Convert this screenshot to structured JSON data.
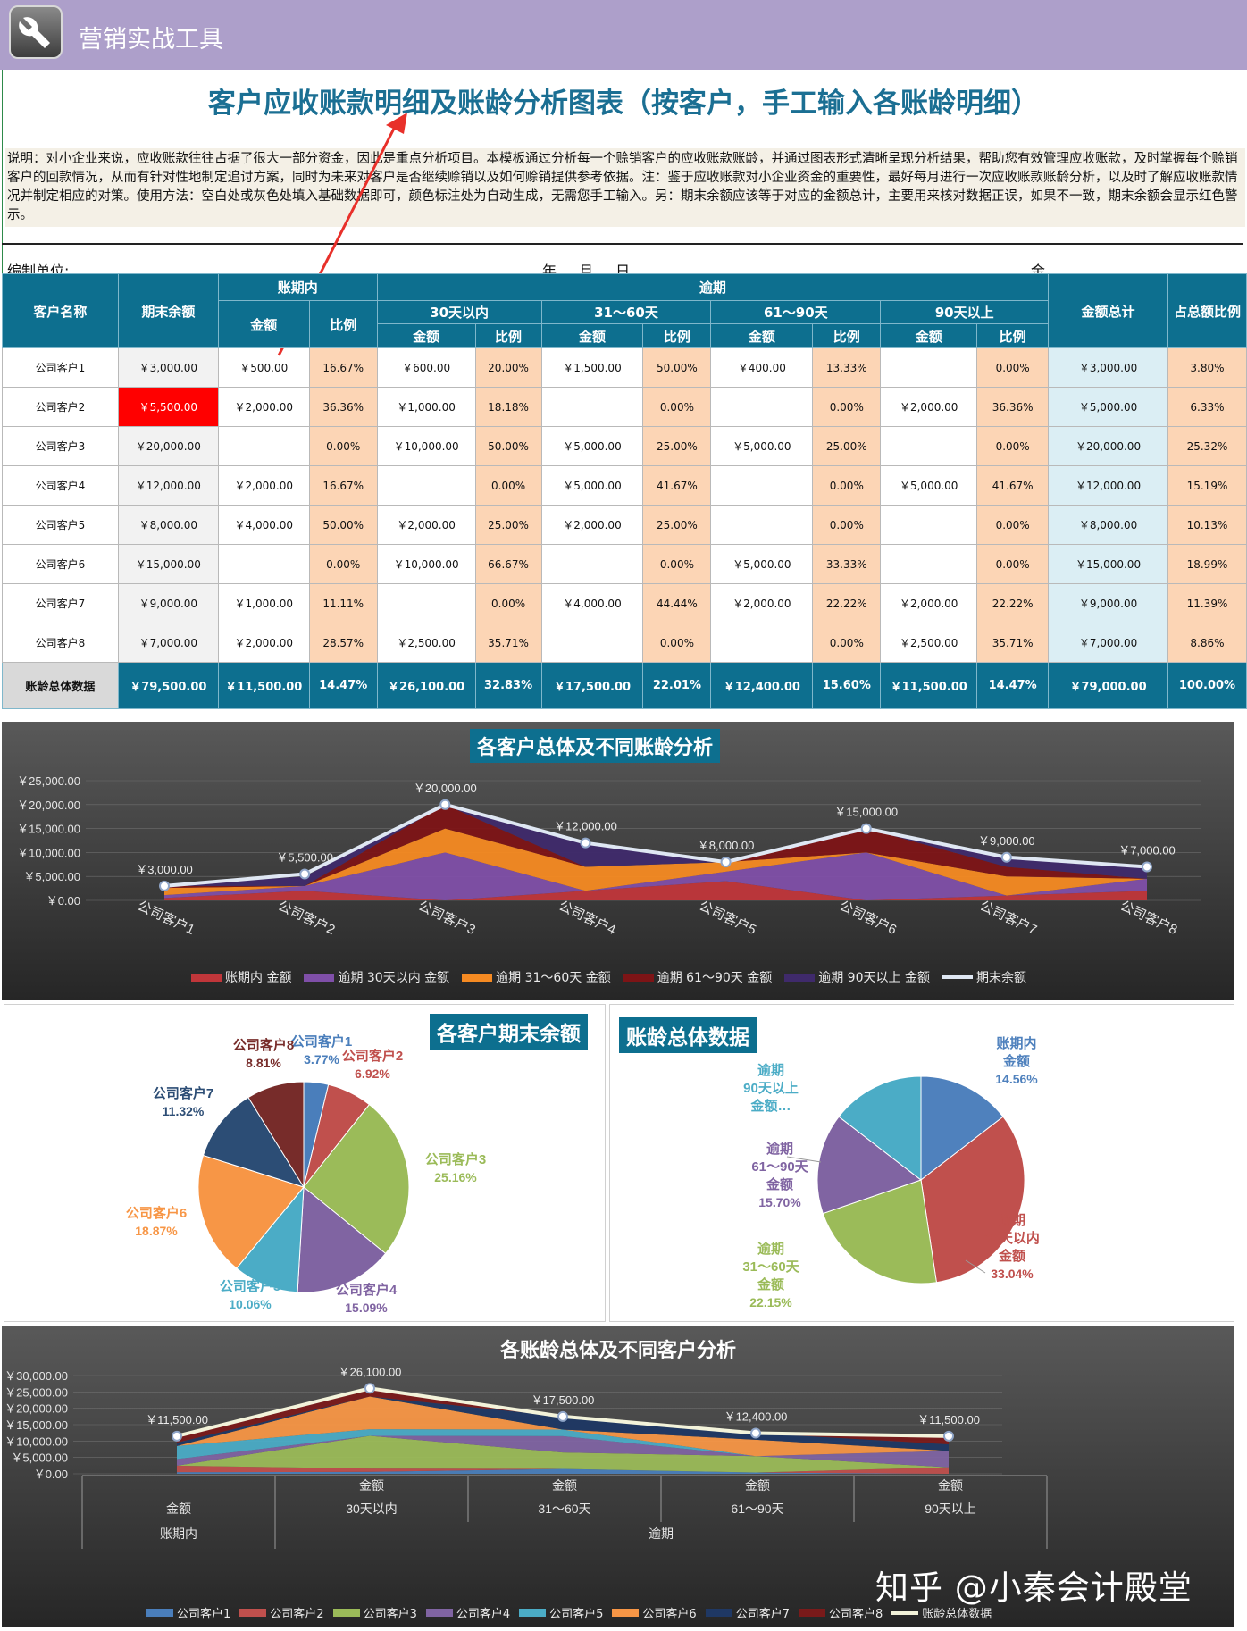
{
  "app": {
    "title": "营销实战工具"
  },
  "header": {
    "title": "客户应收账款明细及账龄分析图表（按客户，手工输入各账龄明细）",
    "description": "说明：对小企业来说，应收账款往往占据了很大一部分资金，因此是重点分析项目。本模板通过分析每一个赊销客户的应收账款账龄，并通过图表形式清晰呈现分析结果，帮助您有效管理应收账款，及时掌握每个赊销客户的回款情况，从而有针对性地制定追讨方案，同时为未来对客户是否继续赊销以及如何赊销提供参考依据。注：鉴于应收账款对小企业资金的重要性，最好每月进行一次应收账款账龄分析，以及时了解应收账款情况并制定相应的对策。使用方法：空白处或灰色处填入基础数据即可，颜色标注处为自动生成，无需您手工输入。另：期末余额应该等于对应的金额总计，主要用来核对数据正误，如果不一致，期末余额会显示红色警示。",
    "unit_label": "编制单位:",
    "date_label": "年 月 日",
    "amount_label": "金"
  },
  "table": {
    "h_customer": "客户名称",
    "h_balance": "期末余额",
    "h_in_term": "账期内",
    "h_overdue": "逾期",
    "h_total": "金额总计",
    "h_share": "占总额比例",
    "h_amount": "金额",
    "h_ratio": "比例",
    "h_b1": "30天以内",
    "h_b2": "31～60天",
    "h_b3": "61～90天",
    "h_b4": "90天以上",
    "rows": [
      {
        "name": "公司客户1",
        "balance": "￥3,000.00",
        "alert": false,
        "c": [
          "￥500.00",
          "16.67%",
          "￥600.00",
          "20.00%",
          "￥1,500.00",
          "50.00%",
          "￥400.00",
          "13.33%",
          "",
          "0.00%"
        ],
        "total": "￥3,000.00",
        "share": "3.80%"
      },
      {
        "name": "公司客户2",
        "balance": "￥5,500.00",
        "alert": true,
        "c": [
          "￥2,000.00",
          "36.36%",
          "￥1,000.00",
          "18.18%",
          "",
          "0.00%",
          "",
          "0.00%",
          "￥2,000.00",
          "36.36%"
        ],
        "total": "￥5,000.00",
        "share": "6.33%"
      },
      {
        "name": "公司客户3",
        "balance": "￥20,000.00",
        "alert": false,
        "c": [
          "",
          "0.00%",
          "￥10,000.00",
          "50.00%",
          "￥5,000.00",
          "25.00%",
          "￥5,000.00",
          "25.00%",
          "",
          "0.00%"
        ],
        "total": "￥20,000.00",
        "share": "25.32%"
      },
      {
        "name": "公司客户4",
        "balance": "￥12,000.00",
        "alert": false,
        "c": [
          "￥2,000.00",
          "16.67%",
          "",
          "0.00%",
          "￥5,000.00",
          "41.67%",
          "",
          "0.00%",
          "￥5,000.00",
          "41.67%"
        ],
        "total": "￥12,000.00",
        "share": "15.19%"
      },
      {
        "name": "公司客户5",
        "balance": "￥8,000.00",
        "alert": false,
        "c": [
          "￥4,000.00",
          "50.00%",
          "￥2,000.00",
          "25.00%",
          "￥2,000.00",
          "25.00%",
          "",
          "0.00%",
          "",
          "0.00%"
        ],
        "total": "￥8,000.00",
        "share": "10.13%"
      },
      {
        "name": "公司客户6",
        "balance": "￥15,000.00",
        "alert": false,
        "c": [
          "",
          "0.00%",
          "￥10,000.00",
          "66.67%",
          "",
          "0.00%",
          "￥5,000.00",
          "33.33%",
          "",
          "0.00%"
        ],
        "total": "￥15,000.00",
        "share": "18.99%"
      },
      {
        "name": "公司客户7",
        "balance": "￥9,000.00",
        "alert": false,
        "c": [
          "￥1,000.00",
          "11.11%",
          "",
          "0.00%",
          "￥4,000.00",
          "44.44%",
          "￥2,000.00",
          "22.22%",
          "￥2,000.00",
          "22.22%"
        ],
        "total": "￥9,000.00",
        "share": "11.39%"
      },
      {
        "name": "公司客户8",
        "balance": "￥7,000.00",
        "alert": false,
        "c": [
          "￥2,000.00",
          "28.57%",
          "￥2,500.00",
          "35.71%",
          "",
          "0.00%",
          "",
          "0.00%",
          "￥2,500.00",
          "35.71%"
        ],
        "total": "￥7,000.00",
        "share": "8.86%"
      }
    ],
    "summary": {
      "name": "账龄总体数据",
      "balance": "￥79,500.00",
      "c": [
        "￥11,500.00",
        "14.47%",
        "￥26,100.00",
        "32.83%",
        "￥17,500.00",
        "22.01%",
        "￥12,400.00",
        "15.60%",
        "￥11,500.00",
        "14.47%"
      ],
      "total": "￥79,000.00",
      "share": "100.00%"
    }
  },
  "colors": {
    "header_teal": "#0d6f8f",
    "ratio_peach": "#fcd5b5",
    "total_blue": "#dbeef4",
    "alert_red": "#ff0000",
    "topbar_purple": "#ad9fca",
    "annotation_arrow": "#e8302a"
  },
  "icons": {
    "app": "wrench-icon"
  },
  "watermark": "知乎 @小秦会计殿堂",
  "chart_data": [
    {
      "type": "area",
      "title": "各客户总体及不同账龄分析",
      "categories": [
        "公司客户1",
        "公司客户2",
        "公司客户3",
        "公司客户4",
        "公司客户5",
        "公司客户6",
        "公司客户7",
        "公司客户8"
      ],
      "y_ticks": [
        "￥25,000.00",
        "￥20,000.00",
        "￥15,000.00",
        "￥10,000.00",
        "￥5,000.00",
        "￥0.00"
      ],
      "ylim": [
        0,
        25000
      ],
      "series": [
        {
          "name": "账期内 金额",
          "color": "#c0363a",
          "values": [
            500,
            2000,
            0,
            2000,
            4000,
            0,
            1000,
            2000
          ]
        },
        {
          "name": "逾期 30天以内 金额",
          "color": "#7f4fa8",
          "values": [
            600,
            1000,
            10000,
            0,
            2000,
            10000,
            0,
            2500
          ]
        },
        {
          "name": "逾期 31～60天 金额",
          "color": "#f58a22",
          "values": [
            1500,
            0,
            5000,
            5000,
            2000,
            0,
            4000,
            0
          ]
        },
        {
          "name": "逾期 61～90天 金额",
          "color": "#7d1416",
          "values": [
            400,
            0,
            5000,
            0,
            0,
            5000,
            2000,
            0
          ]
        },
        {
          "name": "逾期 90天以上 金额",
          "color": "#3f2a6b",
          "values": [
            0,
            2000,
            0,
            5000,
            0,
            0,
            2000,
            2500
          ]
        }
      ],
      "line": {
        "name": "期末余额",
        "color": "#dfe7f3",
        "values": [
          3000,
          5500,
          20000,
          12000,
          8000,
          15000,
          9000,
          7000
        ],
        "labels": [
          "￥3,000.00",
          "￥5,500.00",
          "￥20,000.00",
          "￥12,000.00",
          "￥8,000.00",
          "￥15,000.00",
          "￥9,000.00",
          "￥7,000.00"
        ]
      }
    },
    {
      "type": "pie",
      "title": "各客户期末余额",
      "slices": [
        {
          "name": "公司客户1",
          "pct": "3.77%",
          "value": 3.77,
          "color": "#4a7ebb"
        },
        {
          "name": "公司客户2",
          "pct": "6.92%",
          "value": 6.92,
          "color": "#c0504d"
        },
        {
          "name": "公司客户3",
          "pct": "25.16%",
          "value": 25.16,
          "color": "#9bbb59"
        },
        {
          "name": "公司客户4",
          "pct": "15.09%",
          "value": 15.09,
          "color": "#8064a2"
        },
        {
          "name": "公司客户5",
          "pct": "10.06%",
          "value": 10.06,
          "color": "#4bacc6"
        },
        {
          "name": "公司客户6",
          "pct": "18.87%",
          "value": 18.87,
          "color": "#f79646"
        },
        {
          "name": "公司客户7",
          "pct": "11.32%",
          "value": 11.32,
          "color": "#2c4d75"
        },
        {
          "name": "公司客户8",
          "pct": "8.81%",
          "value": 8.81,
          "color": "#772c2a"
        }
      ]
    },
    {
      "type": "pie",
      "title": "账龄总体数据",
      "slices": [
        {
          "name": "账期内 金额",
          "pct": "14.56%",
          "value": 14.56,
          "color": "#4f81bd"
        },
        {
          "name": "逾期 30天以内 金额",
          "pct": "33.04%",
          "value": 33.04,
          "color": "#c0504d"
        },
        {
          "name": "逾期 31～60天 金额",
          "pct": "22.15%",
          "value": 22.15,
          "color": "#9bbb59"
        },
        {
          "name": "逾期 61～90天 金额",
          "pct": "15.70%",
          "value": 15.7,
          "color": "#8064a2"
        },
        {
          "name": "逾期 90天以上 金额…",
          "pct": "",
          "value": 14.55,
          "color": "#4bacc6"
        }
      ]
    },
    {
      "type": "area",
      "title": "各账龄总体及不同客户分析",
      "categories": [
        "账期内 金额",
        "逾期 30天以内 金额",
        "逾期 31～60天 金额",
        "逾期 61～90天 金额",
        "逾期 90天以上 金额"
      ],
      "axis_row1": [
        "金额",
        "金额",
        "金额",
        "金额",
        "金额"
      ],
      "axis_row2": [
        "",
        "30天以内",
        "31～60天",
        "61～90天",
        "90天以上"
      ],
      "axis_row3": [
        "账期内",
        "逾期"
      ],
      "y_ticks": [
        "￥30,000.00",
        "￥25,000.00",
        "￥20,000.00",
        "￥15,000.00",
        "￥10,000.00",
        "￥5,000.00",
        "￥0.00"
      ],
      "ylim": [
        0,
        30000
      ],
      "series": [
        {
          "name": "公司客户1",
          "color": "#4a7ebb",
          "values": [
            500,
            600,
            1500,
            400,
            0
          ]
        },
        {
          "name": "公司客户2",
          "color": "#c0504d",
          "values": [
            2000,
            1000,
            0,
            0,
            2000
          ]
        },
        {
          "name": "公司客户3",
          "color": "#9bbb59",
          "values": [
            0,
            10000,
            5000,
            5000,
            0
          ]
        },
        {
          "name": "公司客户4",
          "color": "#8064a2",
          "values": [
            2000,
            0,
            5000,
            0,
            5000
          ]
        },
        {
          "name": "公司客户5",
          "color": "#4bacc6",
          "values": [
            4000,
            2000,
            2000,
            0,
            0
          ]
        },
        {
          "name": "公司客户6",
          "color": "#f79646",
          "values": [
            0,
            10000,
            0,
            5000,
            0
          ]
        },
        {
          "name": "公司客户7",
          "color": "#1f3864",
          "values": [
            1000,
            0,
            4000,
            2000,
            2000
          ]
        },
        {
          "name": "公司客户8",
          "color": "#7a1a1a",
          "values": [
            2000,
            2500,
            0,
            0,
            2500
          ]
        }
      ],
      "line": {
        "name": "账龄总体数据",
        "color": "#f3f3da",
        "values": [
          11500,
          26100,
          17500,
          12400,
          11500
        ],
        "labels": [
          "￥11,500.00",
          "￥26,100.00",
          "￥17,500.00",
          "￥12,400.00",
          "￥11,500.00"
        ]
      }
    }
  ]
}
